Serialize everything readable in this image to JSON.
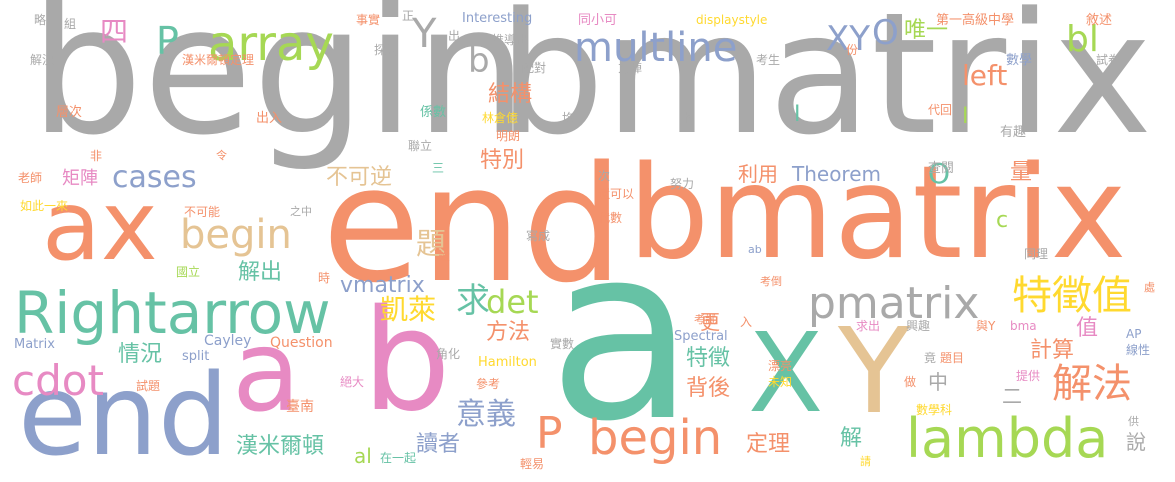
{
  "palette": {
    "gray": "#a9a9a9",
    "orange": "#f4916b",
    "teal": "#66c2a5",
    "blue": "#8da0cb",
    "pink": "#e78ac3",
    "lime": "#a6d854",
    "yellow": "#ffd92f",
    "tan": "#e5c494"
  },
  "words": [
    "begin",
    "bmatrix",
    "end",
    "bmatrix",
    "ax",
    "a",
    "b",
    "end",
    "a",
    "X",
    "Y",
    "Rightarrow",
    "array",
    "multline",
    "begin",
    "cdot",
    "cases",
    "pmatrix",
    "lambda",
    "begin",
    "特徵值",
    "解法",
    "det",
    "P",
    "P",
    "bl",
    "XY",
    "O",
    "Y",
    "b",
    "left",
    "O",
    "四",
    "題",
    "求",
    "意義",
    "凱萊",
    "方法",
    "解出",
    "情況",
    "特徵",
    "背後",
    "定理",
    "讀者",
    "漢米爾頓",
    "vmatrix",
    "不可逆",
    "特別",
    "結構",
    "利用",
    "Theorem",
    "量",
    "計算",
    "值",
    "唯一",
    "更",
    "中",
    "二",
    "解",
    "說",
    "al",
    "cases",
    "Interesting",
    "displaystyle",
    "第一高級中學",
    "敘述",
    "同小可",
    "事實",
    "推導出",
    "漢米爾頓定理",
    "方陣",
    "數學",
    "試卷",
    "考生",
    "份",
    "代回",
    "有趣",
    "查閱",
    "努力",
    "還可以",
    "代數",
    "寫成",
    "同理",
    "處",
    "考倒",
    "Cayley",
    "split",
    "Question",
    "Hamilton",
    "Spectral",
    "實數",
    "考試",
    "入",
    "興趣",
    "與Y",
    "bma",
    "AP",
    "線性",
    "漂亮",
    "未知",
    "提供",
    "數學科",
    "做",
    "竟",
    "題目",
    "角化",
    "絕大",
    "參考",
    "臺南",
    "國立",
    "試題",
    "設",
    "時",
    "在一起",
    "輕易",
    "請",
    "供",
    "Matrix",
    "老師",
    "矩陣",
    "如此一來",
    "不可能",
    "之中",
    "令",
    "非",
    "出入",
    "層次",
    "解決",
    "探討",
    "略",
    "組",
    "正",
    "出",
    "係數",
    "林倉億",
    "明朗",
    "配對",
    "聯立",
    "三",
    "均",
    "階",
    "次",
    "ab",
    "c",
    "求出",
    "I",
    "I",
    "Y",
    "X",
    "a"
  ]
}
